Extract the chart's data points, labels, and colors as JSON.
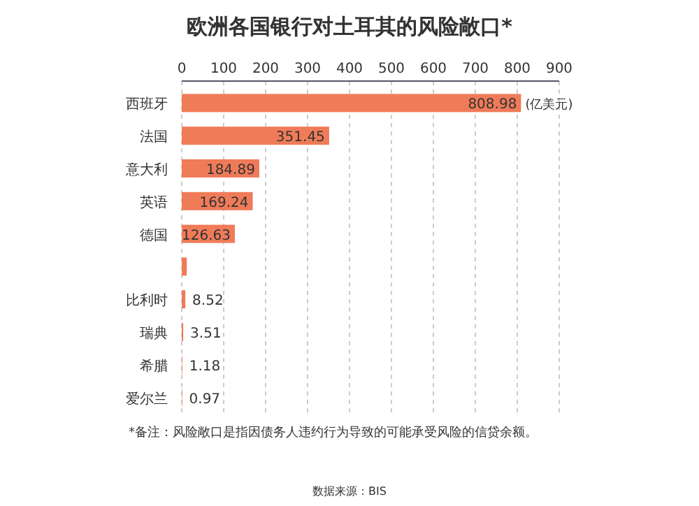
{
  "chart_data": {
    "type": "bar",
    "orientation": "horizontal",
    "title": "欧洲各国银行对土耳其的风险敞口*",
    "categories": [
      "西班牙",
      "法国",
      "意大利",
      "英语",
      "德国",
      null,
      "比利时",
      "瑞典",
      "希腊",
      "爱尔兰"
    ],
    "values": [
      808.98,
      351.45,
      184.89,
      169.24,
      126.63,
      12,
      8.52,
      3.51,
      1.18,
      0.97
    ],
    "value_labels": [
      "808.98",
      "351.45",
      "184.89",
      "169.24",
      "126.63",
      null,
      "8.52",
      "3.51",
      "1.18",
      "0.97"
    ],
    "color": "#f07b59",
    "xlim": [
      0,
      900
    ],
    "xticks": [
      0,
      100,
      200,
      300,
      400,
      500,
      600,
      700,
      800,
      900
    ],
    "grid": "x",
    "annotations": [
      "(亿美元)",
      "*备注：风险敞口是指因债务人违约行为导致的可能承受风险的信贷余额。",
      "数据来源：BIS"
    ]
  }
}
